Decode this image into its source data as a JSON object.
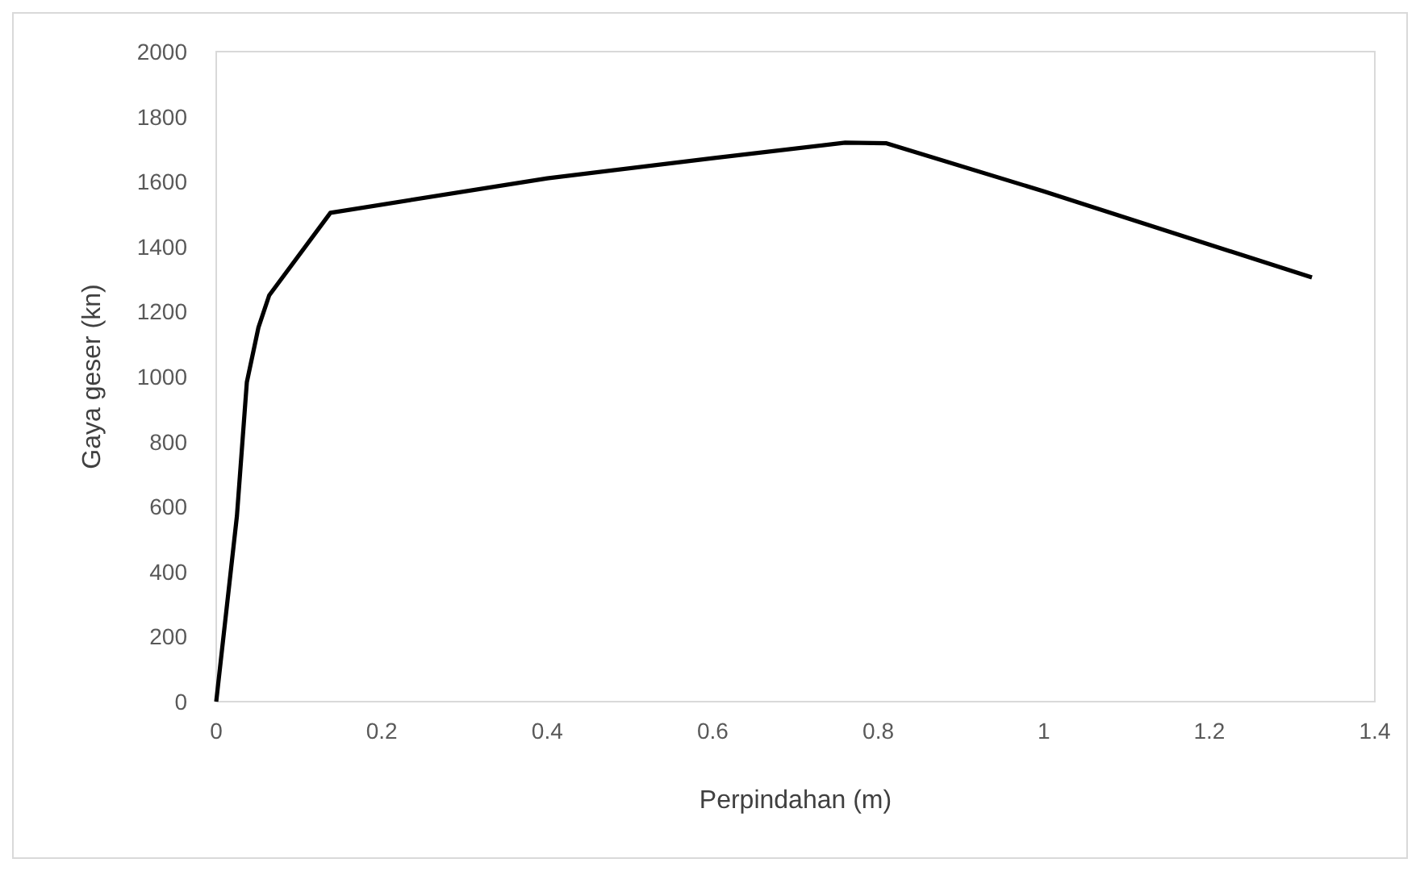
{
  "chart_data": {
    "type": "line",
    "xlabel": "Perpindahan (m)",
    "ylabel": "Gaya geser (kn)",
    "x": [
      0,
      0.025,
      0.037,
      0.051,
      0.064,
      0.138,
      0.4,
      0.6,
      0.76,
      0.81,
      1.0,
      1.324
    ],
    "series": [
      {
        "color": "#000000",
        "values": [
          0,
          571,
          983,
          1151,
          1250,
          1504,
          1610,
          1672,
          1720,
          1718,
          1570,
          1305
        ]
      }
    ],
    "xlim": [
      0,
      1.4
    ],
    "xticks": [
      0,
      0.2,
      0.4,
      0.6,
      0.8,
      1,
      1.2,
      1.4
    ],
    "ylim": [
      0,
      2000
    ],
    "yticks": [
      0,
      200,
      400,
      600,
      800,
      1000,
      1200,
      1400,
      1600,
      1800,
      2000
    ],
    "grid": false,
    "marker": "none",
    "line_style": "solid"
  }
}
